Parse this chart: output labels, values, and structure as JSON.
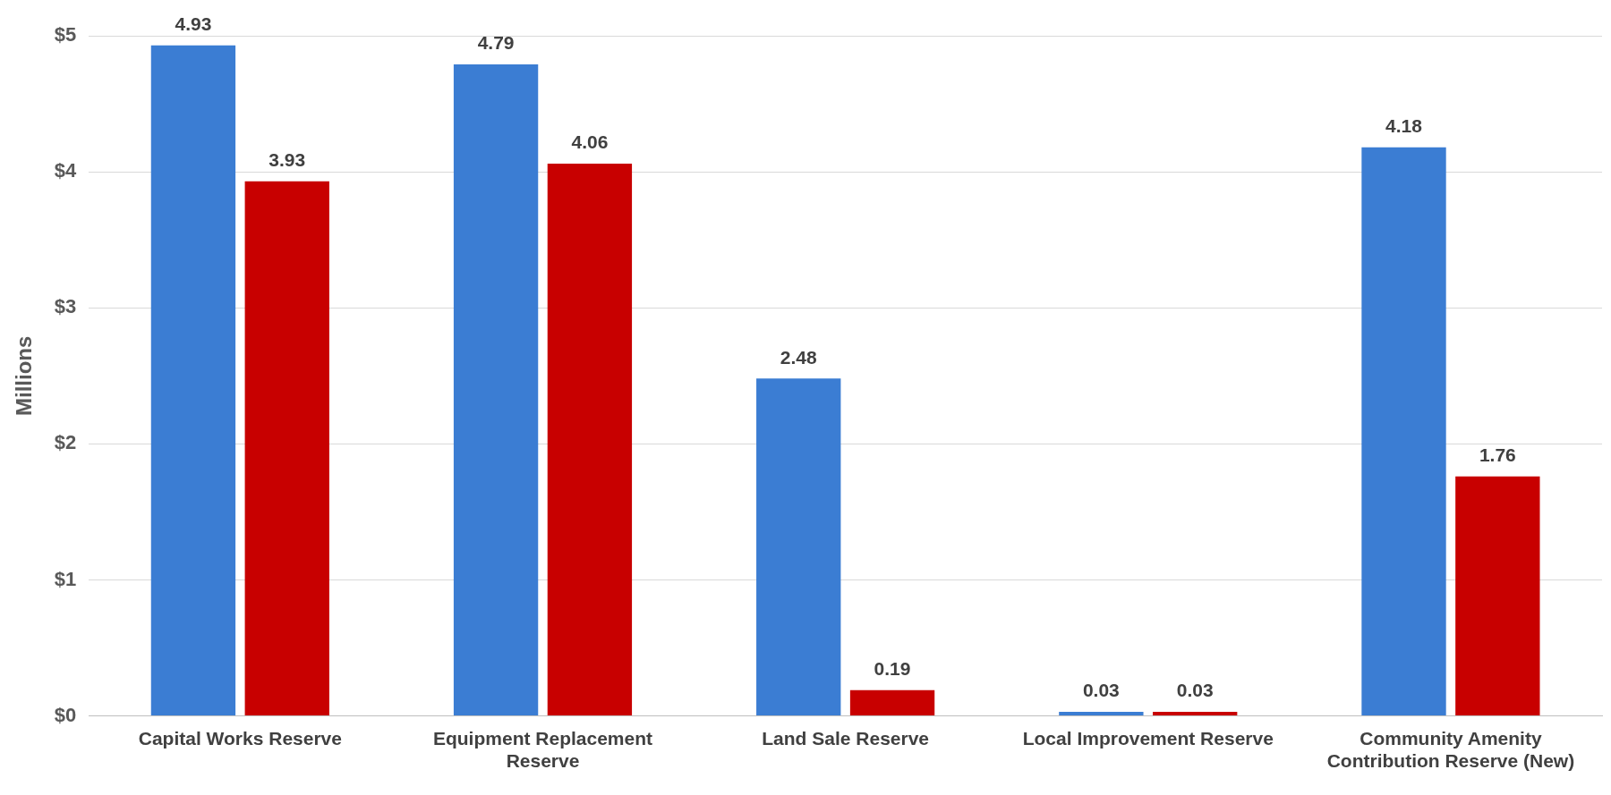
{
  "chart_data": {
    "type": "bar",
    "ylabel": "Millions",
    "categories": [
      "Capital Works Reserve",
      "Equipment Replacement Reserve",
      "Land Sale Reserve",
      "Local Improvement Reserve",
      "Community Amenity Contribution Reserve (New)"
    ],
    "series": [
      {
        "color": "#3b7dd3",
        "values": [
          4.93,
          4.79,
          2.48,
          0.03,
          4.18
        ]
      },
      {
        "color": "#c80000",
        "values": [
          3.93,
          4.06,
          0.19,
          0.03,
          1.76
        ]
      }
    ],
    "ylim": [
      0,
      5
    ],
    "yticks": [
      {
        "value": 0,
        "label": "$0"
      },
      {
        "value": 1,
        "label": "$1"
      },
      {
        "value": 2,
        "label": "$2"
      },
      {
        "value": 3,
        "label": "$3"
      },
      {
        "value": 4,
        "label": "$4"
      },
      {
        "value": 5,
        "label": "$5"
      }
    ],
    "grid": "y",
    "legend": false,
    "data_labels": true
  }
}
